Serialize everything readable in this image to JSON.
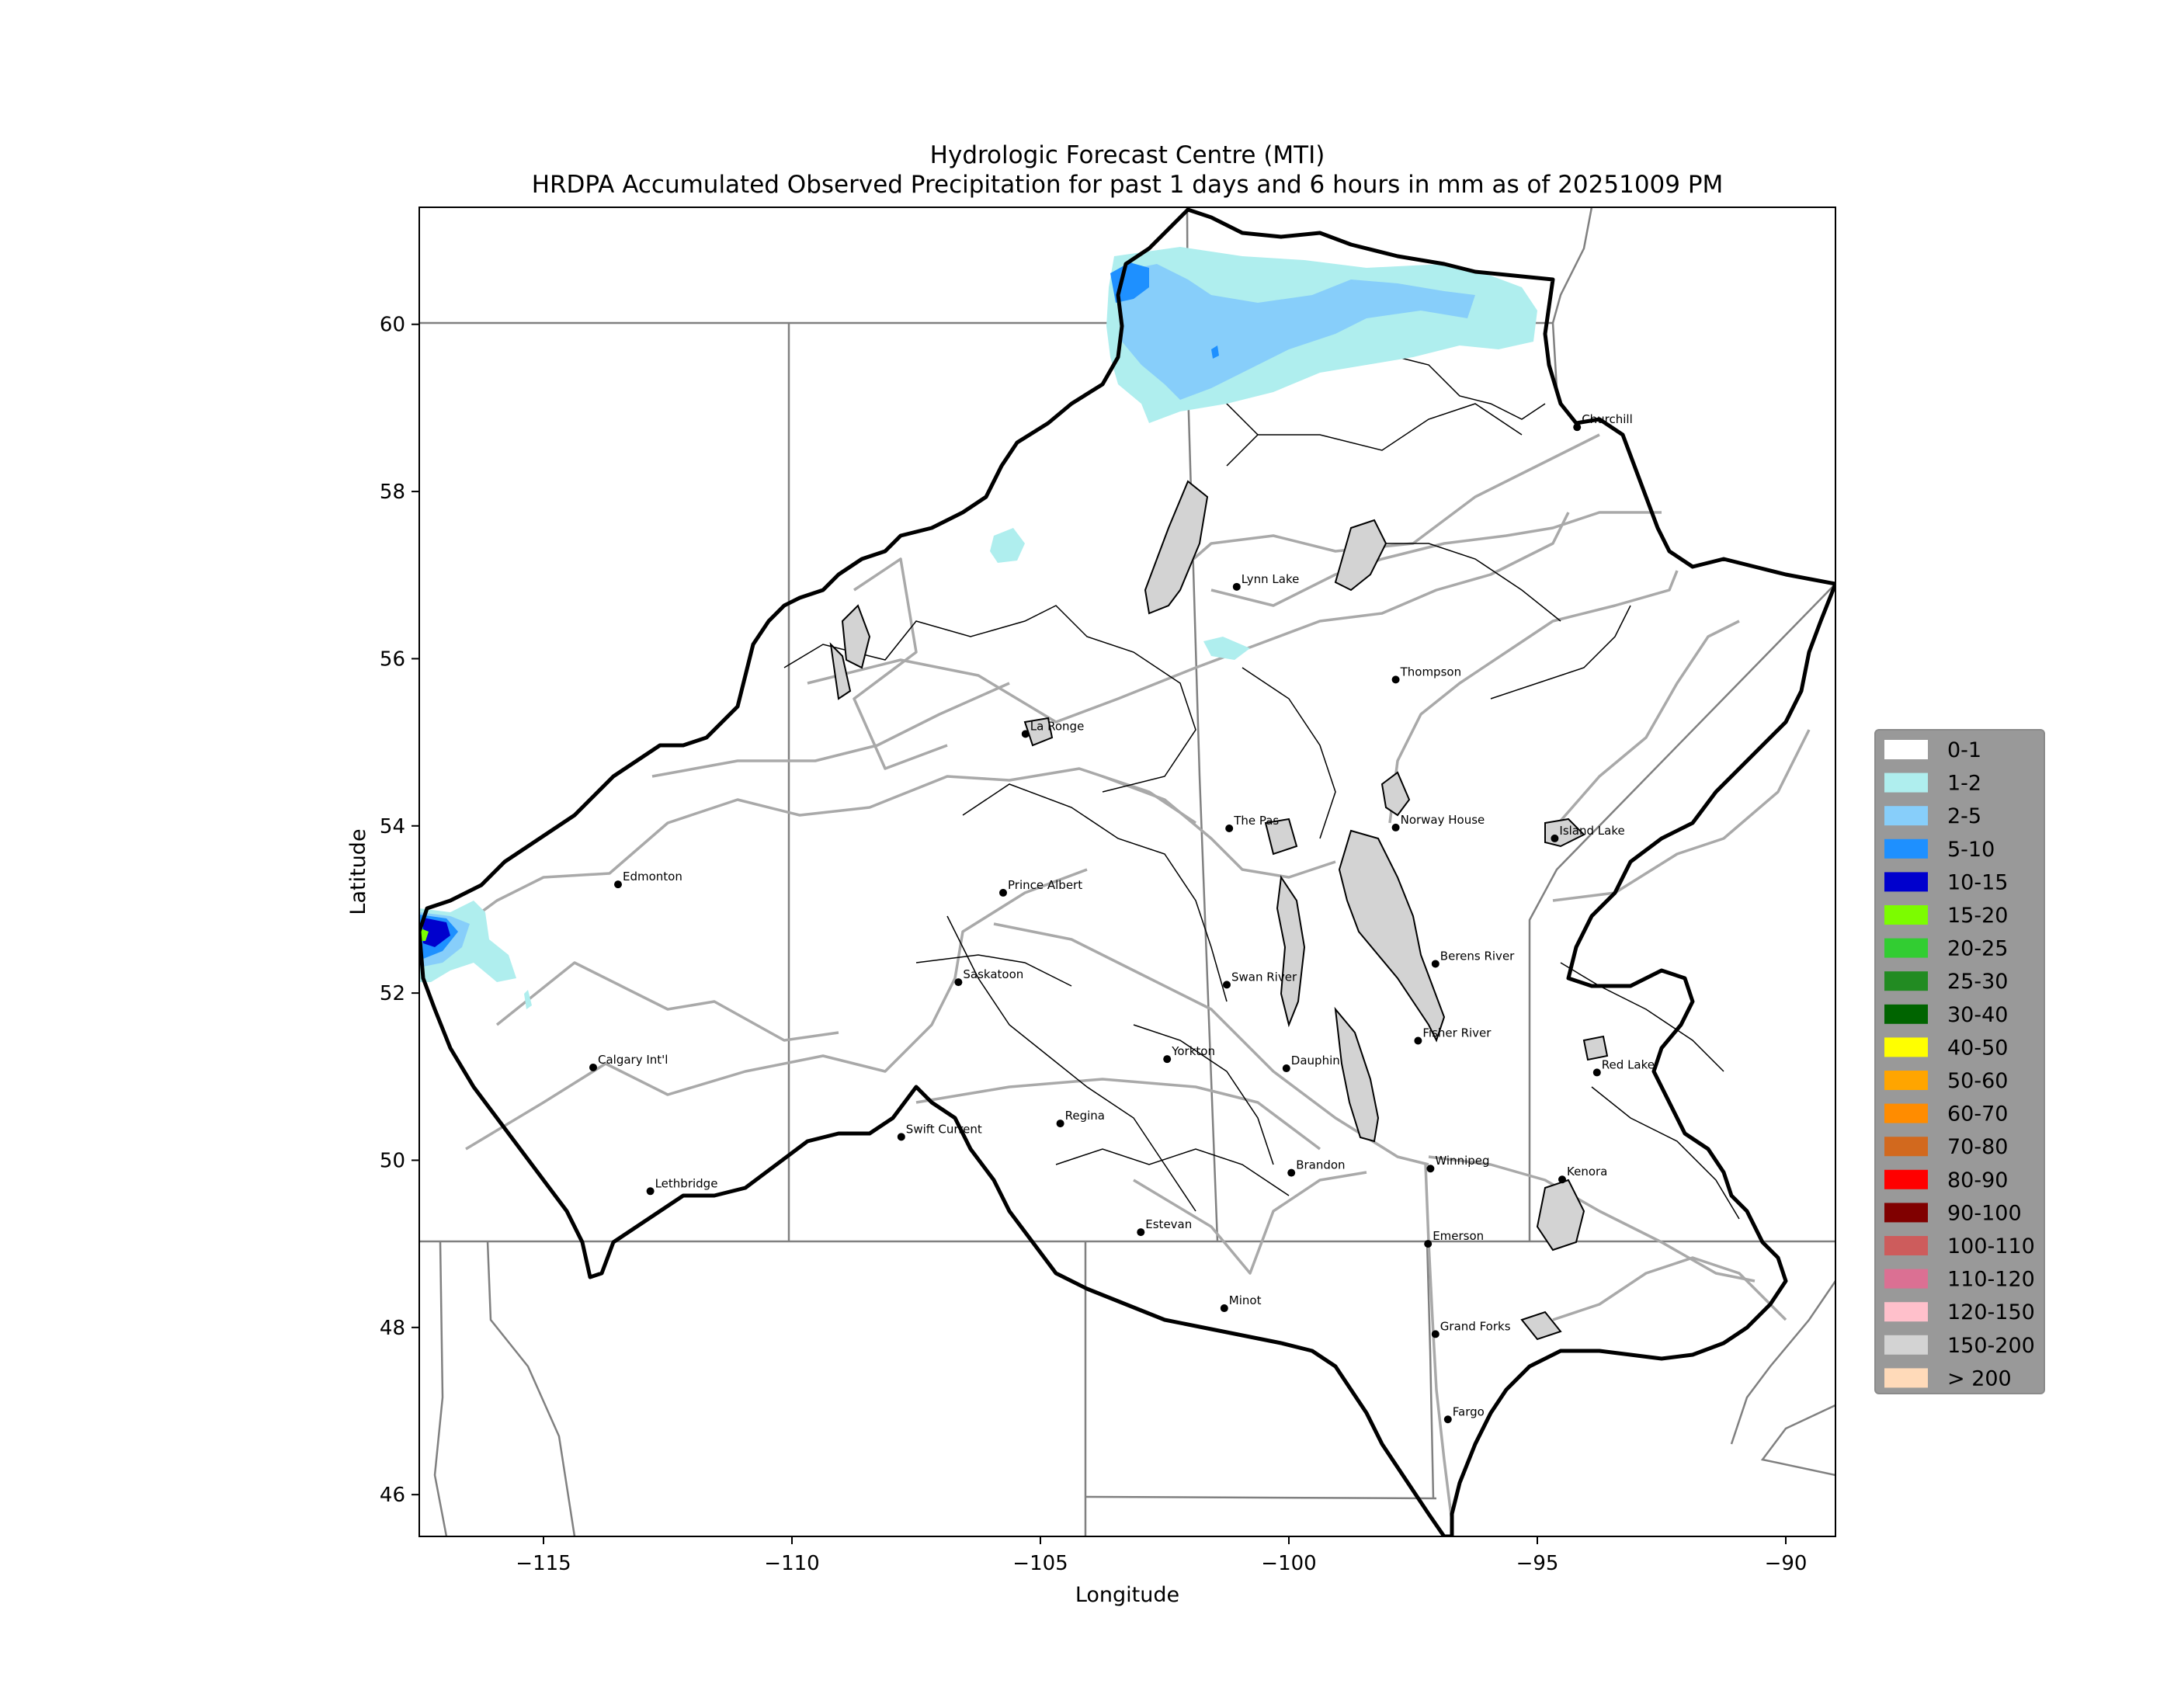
{
  "title_line1": "Hydrologic Forecast Centre (MTI)",
  "title_line2": "HRDPA Accumulated Observed Precipitation for past 1 days and 6 hours in mm as of 20251009 PM",
  "xlabel": "Longitude",
  "ylabel": "Latitude",
  "map": {
    "lon_range": [
      -117.5,
      -89.0
    ],
    "lat_range": [
      45.5,
      61.4
    ],
    "x_ticks": [
      {
        "value": -115,
        "label": "−115"
      },
      {
        "value": -110,
        "label": "−110"
      },
      {
        "value": -105,
        "label": "−105"
      },
      {
        "value": -100,
        "label": "−100"
      },
      {
        "value": -95,
        "label": "−95"
      },
      {
        "value": -90,
        "label": "−90"
      }
    ],
    "y_ticks": [
      {
        "value": 46,
        "label": "46"
      },
      {
        "value": 48,
        "label": "48"
      },
      {
        "value": 50,
        "label": "50"
      },
      {
        "value": 52,
        "label": "52"
      },
      {
        "value": 54,
        "label": "54"
      },
      {
        "value": 56,
        "label": "56"
      },
      {
        "value": 58,
        "label": "58"
      },
      {
        "value": 60,
        "label": "60"
      }
    ]
  },
  "cities": [
    {
      "name": "Churchill",
      "lon": -94.2,
      "lat": 58.77
    },
    {
      "name": "Lynn Lake",
      "lon": -101.05,
      "lat": 56.86
    },
    {
      "name": "Thompson",
      "lon": -97.85,
      "lat": 55.75
    },
    {
      "name": "La Ronge",
      "lon": -105.3,
      "lat": 55.1
    },
    {
      "name": "The Pas",
      "lon": -101.2,
      "lat": 53.97
    },
    {
      "name": "Norway House",
      "lon": -97.85,
      "lat": 53.98
    },
    {
      "name": "Island Lake",
      "lon": -94.65,
      "lat": 53.85
    },
    {
      "name": "Edmonton",
      "lon": -113.5,
      "lat": 53.3
    },
    {
      "name": "Prince Albert",
      "lon": -105.75,
      "lat": 53.2
    },
    {
      "name": "Saskatoon",
      "lon": -106.65,
      "lat": 52.13
    },
    {
      "name": "Swan River",
      "lon": -101.25,
      "lat": 52.1
    },
    {
      "name": "Berens River",
      "lon": -97.05,
      "lat": 52.35
    },
    {
      "name": "Yorkton",
      "lon": -102.45,
      "lat": 51.21
    },
    {
      "name": "Dauphin",
      "lon": -100.05,
      "lat": 51.1
    },
    {
      "name": "Fisher River",
      "lon": -97.4,
      "lat": 51.43
    },
    {
      "name": "Calgary Int'l",
      "lon": -114.0,
      "lat": 51.11
    },
    {
      "name": "Red Lake",
      "lon": -93.8,
      "lat": 51.05
    },
    {
      "name": "Swift Current",
      "lon": -107.8,
      "lat": 50.28
    },
    {
      "name": "Regina",
      "lon": -104.6,
      "lat": 50.44
    },
    {
      "name": "Brandon",
      "lon": -99.95,
      "lat": 49.85
    },
    {
      "name": "Winnipeg",
      "lon": -97.15,
      "lat": 49.9
    },
    {
      "name": "Kenora",
      "lon": -94.5,
      "lat": 49.77
    },
    {
      "name": "Lethbridge",
      "lon": -112.85,
      "lat": 49.63
    },
    {
      "name": "Estevan",
      "lon": -102.98,
      "lat": 49.14
    },
    {
      "name": "Emerson",
      "lon": -97.2,
      "lat": 49.0
    },
    {
      "name": "Minot",
      "lon": -101.3,
      "lat": 48.23
    },
    {
      "name": "Grand Forks",
      "lon": -97.05,
      "lat": 47.92
    },
    {
      "name": "Fargo",
      "lon": -96.8,
      "lat": 46.9
    }
  ],
  "legend": {
    "items": [
      {
        "label": "0-1",
        "color": "#ffffff"
      },
      {
        "label": "1-2",
        "color": "#afeeee"
      },
      {
        "label": "2-5",
        "color": "#87cefa"
      },
      {
        "label": "5-10",
        "color": "#1e90ff"
      },
      {
        "label": "10-15",
        "color": "#0000cd"
      },
      {
        "label": "15-20",
        "color": "#7cfc00"
      },
      {
        "label": "20-25",
        "color": "#32cd32"
      },
      {
        "label": "25-30",
        "color": "#228b22"
      },
      {
        "label": "30-40",
        "color": "#006400"
      },
      {
        "label": "40-50",
        "color": "#ffff00"
      },
      {
        "label": "50-60",
        "color": "#ffa500"
      },
      {
        "label": "60-70",
        "color": "#ff8c00"
      },
      {
        "label": "70-80",
        "color": "#d2691e"
      },
      {
        "label": "80-90",
        "color": "#ff0000"
      },
      {
        "label": "90-100",
        "color": "#800000"
      },
      {
        "label": "100-110",
        "color": "#cd5c5c"
      },
      {
        "label": "110-120",
        "color": "#db7093"
      },
      {
        "label": "120-150",
        "color": "#ffc0cb"
      },
      {
        "label": "150-200",
        "color": "#d3d3d3"
      },
      {
        "label": "> 200",
        "color": "#ffdab9"
      }
    ]
  },
  "colors": {
    "lake_fill": "#d3d3d3",
    "river": "#a9a9a9",
    "boundary": "#000000",
    "political_border": "#808080",
    "legend_bg": "#999999"
  }
}
